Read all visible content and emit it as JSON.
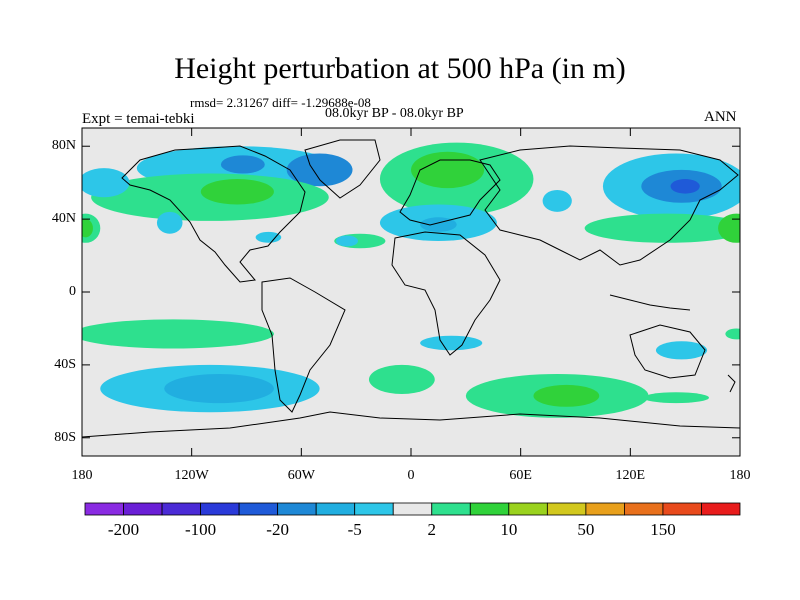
{
  "title": "Height perturbation at 500 hPa (in m)",
  "stats_line": "rmsd= 2.31267 diff= -1.29688e-08",
  "period_line": "08.0kyr BP - 08.0kyr BP",
  "experiment_label": "Expt = temai-tebki",
  "season_label": "ANN",
  "lat_ticks": [
    {
      "label": "80N",
      "lat": 80
    },
    {
      "label": "40N",
      "lat": 40
    },
    {
      "label": "0",
      "lat": 0
    },
    {
      "label": "40S",
      "lat": -40
    },
    {
      "label": "80S",
      "lat": -80
    }
  ],
  "lon_ticks": [
    {
      "label": "180",
      "lon": -180
    },
    {
      "label": "120W",
      "lon": -120
    },
    {
      "label": "60W",
      "lon": -60
    },
    {
      "label": "0",
      "lon": 0
    },
    {
      "label": "60E",
      "lon": 60
    },
    {
      "label": "120E",
      "lon": 120
    },
    {
      "label": "180",
      "lon": 180
    }
  ],
  "colorbar": {
    "colors": [
      "#8a2be2",
      "#6a1fd6",
      "#4b2bd6",
      "#2a3ad9",
      "#1f5ad8",
      "#1e88d6",
      "#21aee0",
      "#2dc6e8",
      "#e8e8e8",
      "#2ee08e",
      "#30d23a",
      "#9ad21e",
      "#d2c81e",
      "#e8a01c",
      "#e8701c",
      "#e84a1c",
      "#e81c1c"
    ],
    "labels": [
      {
        "text": "-200",
        "boundary": 1
      },
      {
        "text": "-100",
        "boundary": 3
      },
      {
        "text": "-20",
        "boundary": 5
      },
      {
        "text": "-5",
        "boundary": 7
      },
      {
        "text": "2",
        "boundary": 9
      },
      {
        "text": "10",
        "boundary": 11
      },
      {
        "text": "50",
        "boundary": 13
      },
      {
        "text": "150",
        "boundary": 15
      }
    ]
  },
  "anomaly_regions": [
    {
      "name": "arctic-north-america-negative",
      "color": "#2dc6e8",
      "lon": -95,
      "lat": 68,
      "rlon": 55,
      "rlat": 12
    },
    {
      "name": "greenland-negative-core",
      "color": "#1e88d6",
      "lon": -50,
      "lat": 67,
      "rlon": 18,
      "rlat": 9
    },
    {
      "name": "canada-negative-core",
      "color": "#1e88d6",
      "lon": -92,
      "lat": 70,
      "rlon": 12,
      "rlat": 5
    },
    {
      "name": "north-america-positive",
      "color": "#2ee08e",
      "lon": -110,
      "lat": 52,
      "rlon": 65,
      "rlat": 13
    },
    {
      "name": "north-america-positive-core",
      "color": "#30d23a",
      "lon": -95,
      "lat": 55,
      "rlon": 20,
      "rlat": 7
    },
    {
      "name": "europe-positive",
      "color": "#2ee08e",
      "lon": 25,
      "lat": 62,
      "rlon": 42,
      "rlat": 20
    },
    {
      "name": "europe-positive-core",
      "color": "#30d23a",
      "lon": 20,
      "lat": 67,
      "rlon": 20,
      "rlat": 10
    },
    {
      "name": "mediterranean-negative",
      "color": "#2dc6e8",
      "lon": 15,
      "lat": 38,
      "rlon": 32,
      "rlat": 10
    },
    {
      "name": "mediterranean-negative-core",
      "color": "#21aee0",
      "lon": 15,
      "lat": 37,
      "rlon": 10,
      "rlat": 4
    },
    {
      "name": "asia-negative",
      "color": "#2dc6e8",
      "lon": 145,
      "lat": 58,
      "rlon": 40,
      "rlat": 18
    },
    {
      "name": "asia-negative-core",
      "color": "#1e88d6",
      "lon": 148,
      "lat": 58,
      "rlon": 22,
      "rlat": 9
    },
    {
      "name": "asia-negative-inner",
      "color": "#1f5ad8",
      "lon": 150,
      "lat": 58,
      "rlon": 8,
      "rlat": 4
    },
    {
      "name": "north-pacific-negative",
      "color": "#2dc6e8",
      "lon": -168,
      "lat": 60,
      "rlon": 14,
      "rlat": 8
    },
    {
      "name": "mid-asia-negative",
      "color": "#2dc6e8",
      "lon": 80,
      "lat": 50,
      "rlon": 8,
      "rlat": 6
    },
    {
      "name": "east-asia-positive",
      "color": "#2ee08e",
      "lon": 140,
      "lat": 35,
      "rlon": 45,
      "rlat": 8
    },
    {
      "name": "east-asia-positive-core",
      "color": "#30d23a",
      "lon": 178,
      "lat": 35,
      "rlon": 10,
      "rlat": 8
    },
    {
      "name": "pacific-west-positive",
      "color": "#2ee08e",
      "lon": -178,
      "lat": 35,
      "rlon": 8,
      "rlat": 8
    },
    {
      "name": "pacific-west-positive-core",
      "color": "#30d23a",
      "lon": -178,
      "lat": 35,
      "rlon": 4,
      "rlat": 5
    },
    {
      "name": "atlantic-positive",
      "color": "#2ee08e",
      "lon": -28,
      "lat": 28,
      "rlon": 14,
      "rlat": 4
    },
    {
      "name": "west-atlantic-negative",
      "color": "#2dc6e8",
      "lon": -35,
      "lat": 28,
      "rlon": 6,
      "rlat": 3
    },
    {
      "name": "us-negative",
      "color": "#2dc6e8",
      "lon": -78,
      "lat": 30,
      "rlon": 7,
      "rlat": 3
    },
    {
      "name": "pacific-negative",
      "color": "#2dc6e8",
      "lon": -132,
      "lat": 38,
      "rlon": 7,
      "rlat": 6
    },
    {
      "name": "south-pacific-positive",
      "color": "#2ee08e",
      "lon": -130,
      "lat": -23,
      "rlon": 55,
      "rlat": 8
    },
    {
      "name": "south-pacific-negative",
      "color": "#2dc6e8",
      "lon": -110,
      "lat": -53,
      "rlon": 60,
      "rlat": 13
    },
    {
      "name": "south-pacific-negative-core",
      "color": "#21aee0",
      "lon": -105,
      "lat": -53,
      "rlon": 30,
      "rlat": 8
    },
    {
      "name": "south-atlantic-positive",
      "color": "#2ee08e",
      "lon": -5,
      "lat": -48,
      "rlon": 18,
      "rlat": 8
    },
    {
      "name": "south-africa-negative",
      "color": "#2dc6e8",
      "lon": 22,
      "lat": -28,
      "rlon": 17,
      "rlat": 4
    },
    {
      "name": "indian-ocean-positive",
      "color": "#2ee08e",
      "lon": 80,
      "lat": -57,
      "rlon": 50,
      "rlat": 12
    },
    {
      "name": "indian-ocean-positive-core",
      "color": "#30d23a",
      "lon": 85,
      "lat": -57,
      "rlon": 18,
      "rlat": 6
    },
    {
      "name": "australia-negative",
      "color": "#2dc6e8",
      "lon": 148,
      "lat": -32,
      "rlon": 14,
      "rlat": 5
    },
    {
      "name": "tasman-positive",
      "color": "#2ee08e",
      "lon": 145,
      "lat": -58,
      "rlon": 18,
      "rlat": 3
    },
    {
      "name": "east-pacific-positive",
      "color": "#2ee08e",
      "lon": 178,
      "lat": -23,
      "rlon": 6,
      "rlat": 3
    }
  ]
}
